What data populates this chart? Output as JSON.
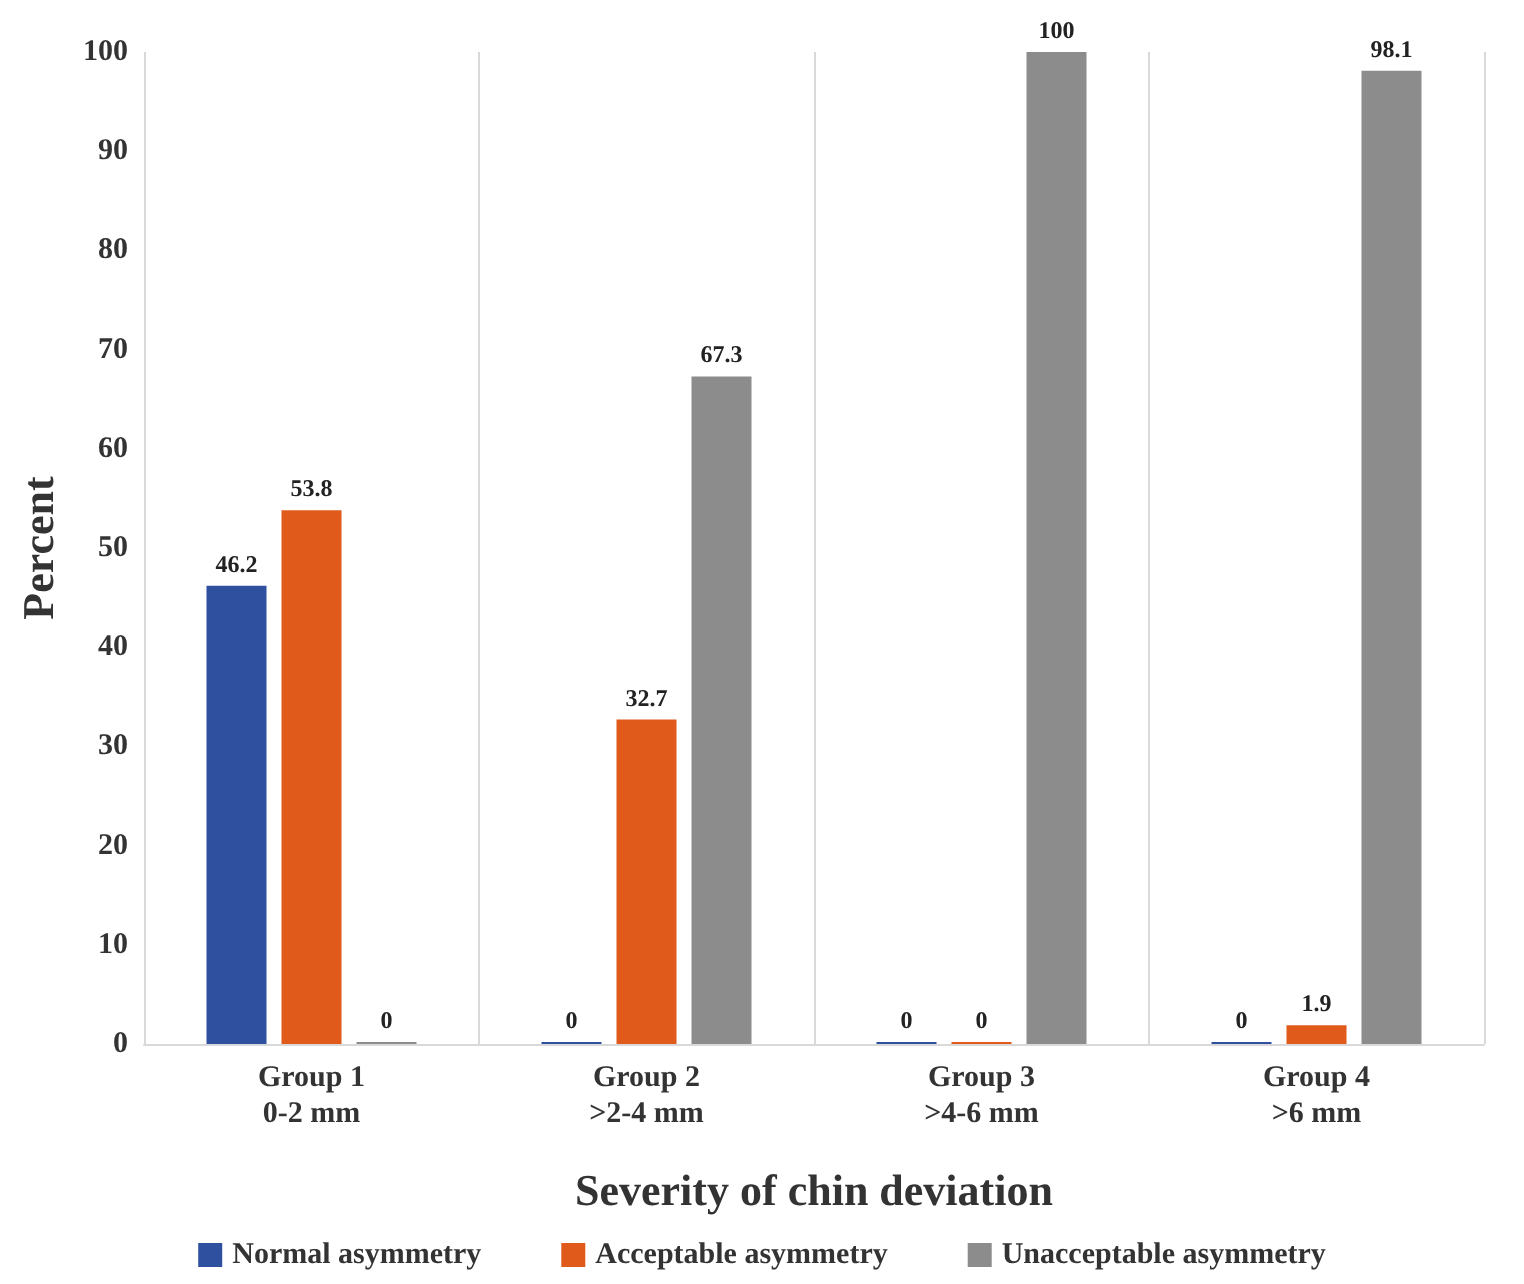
{
  "chart_data": {
    "type": "bar",
    "xlabel": "Severity of chin deviation",
    "ylabel": "Percent",
    "categories": [
      "Group 1\n0-2 mm",
      "Group 2\n>2-4 mm",
      "Group 3\n>4-6 mm",
      "Group 4\n>6 mm"
    ],
    "series": [
      {
        "name": "Normal asymmetry",
        "color": "#2f4f9f",
        "values": [
          46.2,
          0,
          0,
          0
        ]
      },
      {
        "name": "Acceptable asymmetry",
        "color": "#e05a1c",
        "values": [
          53.8,
          32.7,
          0,
          1.9
        ]
      },
      {
        "name": "Unacceptable asymmetry",
        "color": "#8c8c8c",
        "values": [
          0,
          67.3,
          100,
          98.1
        ]
      }
    ],
    "ylim": [
      0,
      100
    ],
    "yticks": [
      0,
      10,
      20,
      30,
      40,
      50,
      60,
      70,
      80,
      90,
      100
    ],
    "grid": "x",
    "legend": "bottom",
    "data_labels": true
  }
}
